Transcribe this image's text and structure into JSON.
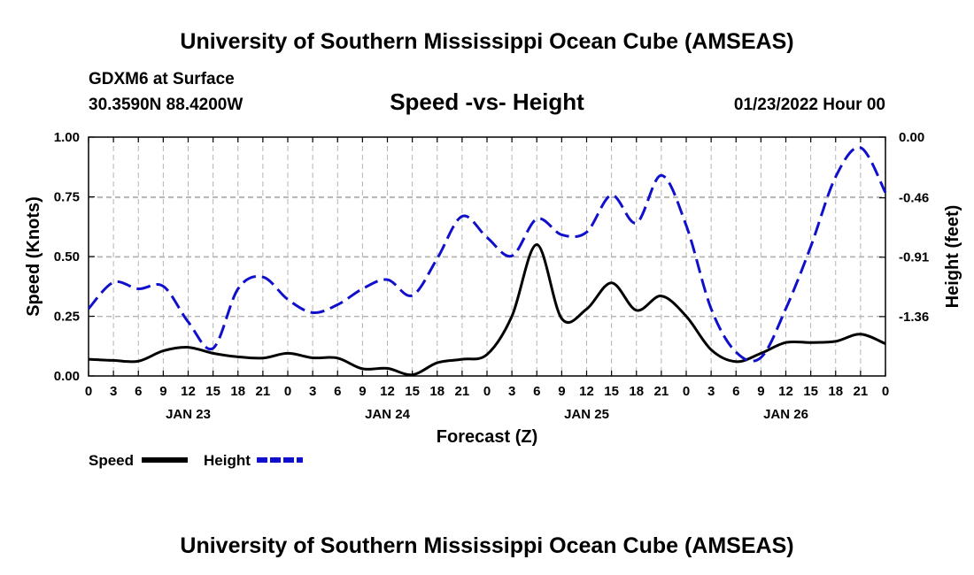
{
  "header": {
    "title": "University of Southern Mississippi Ocean Cube (AMSEAS)",
    "station": "GDXM6 at Surface",
    "coords": "30.3590N  88.4200W",
    "chart_title": "Speed -vs- Height",
    "datetime": "01/23/2022 Hour 00"
  },
  "footer": {
    "title": "University of Southern Mississippi Ocean Cube (AMSEAS)"
  },
  "legend": {
    "speed_label": "Speed",
    "height_label": "Height"
  },
  "colors": {
    "speed": "#000000",
    "height": "#1010cc",
    "grid": "#b4b4b4"
  },
  "chart_data": {
    "type": "line",
    "title": "Speed -vs- Height",
    "xlabel": "Forecast (Z)",
    "ylabel": "Speed (Knots)",
    "y2label": "Height (feet)",
    "xlim": [
      0,
      96
    ],
    "ylim": [
      0,
      1.0
    ],
    "y2lim": [
      -1.81,
      0.0
    ],
    "grid": true,
    "legend_position": "bottom-left",
    "x_tick_hours": [
      0,
      3,
      6,
      9,
      12,
      15,
      18,
      21,
      24,
      27,
      30,
      33,
      36,
      39,
      42,
      45,
      48,
      51,
      54,
      57,
      60,
      63,
      66,
      69,
      72,
      75,
      78,
      81,
      84,
      87,
      90,
      93,
      96
    ],
    "x_tick_labels": [
      "0",
      "3",
      "6",
      "9",
      "12",
      "15",
      "18",
      "21",
      "0",
      "3",
      "6",
      "9",
      "12",
      "15",
      "18",
      "21",
      "0",
      "3",
      "6",
      "9",
      "12",
      "15",
      "18",
      "21",
      "0",
      "3",
      "6",
      "9",
      "12",
      "15",
      "18",
      "21",
      "0"
    ],
    "date_labels": [
      {
        "label": "JAN 23",
        "hour": 12
      },
      {
        "label": "JAN 24",
        "hour": 36
      },
      {
        "label": "JAN 25",
        "hour": 60
      },
      {
        "label": "JAN 26",
        "hour": 84
      }
    ],
    "y_ticks": [
      0.0,
      0.25,
      0.5,
      0.75,
      1.0
    ],
    "y_tick_labels": [
      "0.00",
      "0.25",
      "0.50",
      "0.75",
      "1.00"
    ],
    "y2_ticks": [
      0.0,
      -0.46,
      -0.91,
      -1.36
    ],
    "y2_tick_labels": [
      "0.00",
      "-0.46",
      "-0.91",
      "-1.36"
    ],
    "series": [
      {
        "name": "Speed",
        "axis": "left",
        "x": [
          0,
          3,
          6,
          9,
          12,
          15,
          18,
          21,
          24,
          27,
          30,
          33,
          36,
          39,
          42,
          45,
          48,
          51,
          54,
          57,
          60,
          63,
          66,
          69,
          72,
          75,
          78,
          81,
          84,
          87,
          90,
          93,
          96
        ],
        "values": [
          0.07,
          0.065,
          0.062,
          0.105,
          0.12,
          0.095,
          0.08,
          0.075,
          0.095,
          0.076,
          0.075,
          0.03,
          0.032,
          0.005,
          0.055,
          0.07,
          0.09,
          0.25,
          0.55,
          0.24,
          0.28,
          0.39,
          0.275,
          0.335,
          0.25,
          0.11,
          0.06,
          0.095,
          0.14,
          0.14,
          0.145,
          0.175,
          0.135
        ]
      },
      {
        "name": "Height",
        "axis": "right",
        "x": [
          0,
          3,
          6,
          9,
          12,
          15,
          18,
          21,
          24,
          27,
          30,
          33,
          36,
          39,
          42,
          45,
          48,
          51,
          54,
          57,
          60,
          63,
          66,
          69,
          72,
          75,
          78,
          81,
          84,
          87,
          90,
          93,
          96
        ],
        "values": [
          -1.3,
          -1.1,
          -1.15,
          -1.13,
          -1.4,
          -1.6,
          -1.15,
          -1.06,
          -1.23,
          -1.33,
          -1.27,
          -1.15,
          -1.08,
          -1.2,
          -0.92,
          -0.6,
          -0.76,
          -0.9,
          -0.62,
          -0.74,
          -0.72,
          -0.44,
          -0.65,
          -0.29,
          -0.67,
          -1.3,
          -1.63,
          -1.67,
          -1.3,
          -0.83,
          -0.3,
          -0.08,
          -0.42
        ]
      }
    ]
  }
}
